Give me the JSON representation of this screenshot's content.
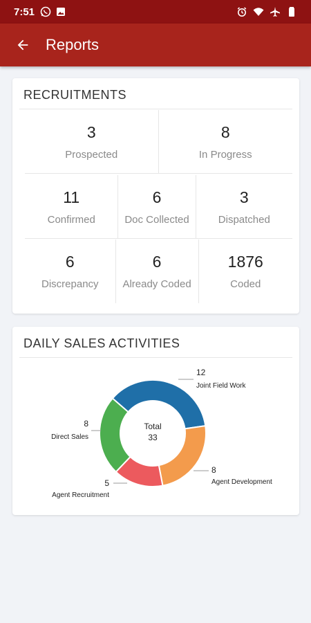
{
  "status_bar": {
    "time": "7:51",
    "left_icons": [
      "whatsapp-icon",
      "image-icon"
    ],
    "right_icons": [
      "alarm-icon",
      "wifi-icon",
      "airplane-icon",
      "battery-icon"
    ]
  },
  "app_bar": {
    "title": "Reports"
  },
  "recruitments": {
    "title": "RECRUITMENTS",
    "rows": [
      [
        {
          "value": "3",
          "label": "Prospected"
        },
        {
          "value": "8",
          "label": "In Progress"
        }
      ],
      [
        {
          "value": "11",
          "label": "Confirmed"
        },
        {
          "value": "6",
          "label": "Doc Collected"
        },
        {
          "value": "3",
          "label": "Dispatched"
        }
      ],
      [
        {
          "value": "6",
          "label": "Discrepancy"
        },
        {
          "value": "6",
          "label": "Already Coded"
        },
        {
          "value": "1876",
          "label": "Coded"
        }
      ]
    ]
  },
  "sales": {
    "title": "DAILY SALES ACTIVITIES",
    "center_label": "Total",
    "center_value": "33"
  },
  "chart_data": {
    "type": "pie",
    "title": "",
    "categories": [
      "Joint Field Work",
      "Agent Development",
      "Agent Recruitment",
      "Direct Sales"
    ],
    "values": [
      12,
      8,
      5,
      8
    ],
    "value_labels": [
      "12",
      "8",
      "5",
      "8"
    ],
    "colors": [
      "#1f6fa8",
      "#f39b4c",
      "#ec5a5e",
      "#4cae4f"
    ],
    "donut": true,
    "total": 33
  }
}
